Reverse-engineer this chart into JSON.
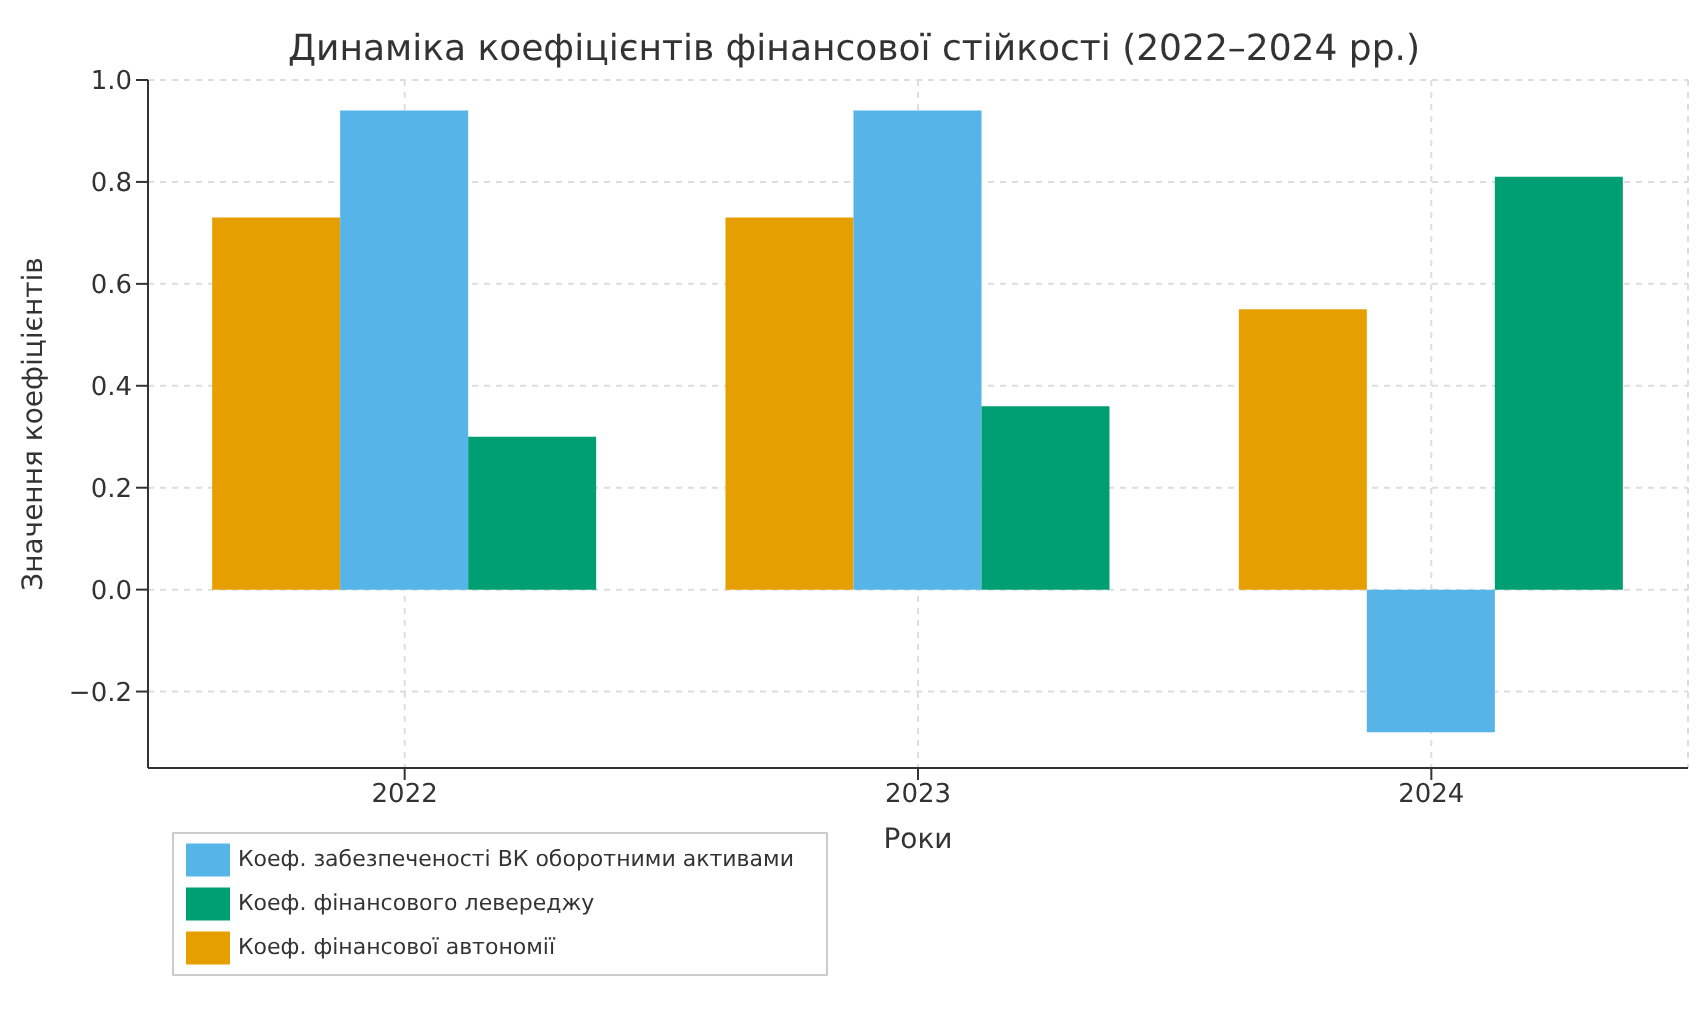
{
  "chart_data": {
    "type": "bar",
    "title": "Динаміка коефіцієнтів фінансової стійкості (2022–2024 рр.)",
    "xlabel": "Роки",
    "ylabel": "Значення коефіцієнтів",
    "categories": [
      "2022",
      "2023",
      "2024"
    ],
    "series": [
      {
        "name": "Коеф. фінансової автономії",
        "color": "#e69f00",
        "values": [
          0.73,
          0.73,
          0.55
        ]
      },
      {
        "name": "Коеф. забезпеченості ВК оборотними активами",
        "color": "#56b4e9",
        "values": [
          0.94,
          0.94,
          -0.28
        ]
      },
      {
        "name": "Коеф. фінансового левереджу",
        "color": "#009e73",
        "values": [
          0.3,
          0.36,
          0.81
        ]
      }
    ],
    "ylim": [
      -0.35,
      1.0
    ],
    "yticks": [
      {
        "value": -0.2,
        "label": "−0.2"
      },
      {
        "value": 0,
        "label": "0.0"
      },
      {
        "value": 0.2,
        "label": "0.2"
      },
      {
        "value": 0.4,
        "label": "0.4"
      },
      {
        "value": 0.6,
        "label": "0.6"
      },
      {
        "value": 0.8,
        "label": "0.8"
      },
      {
        "value": 1,
        "label": "1.0"
      }
    ],
    "grid": true,
    "legend": "bottom left"
  }
}
